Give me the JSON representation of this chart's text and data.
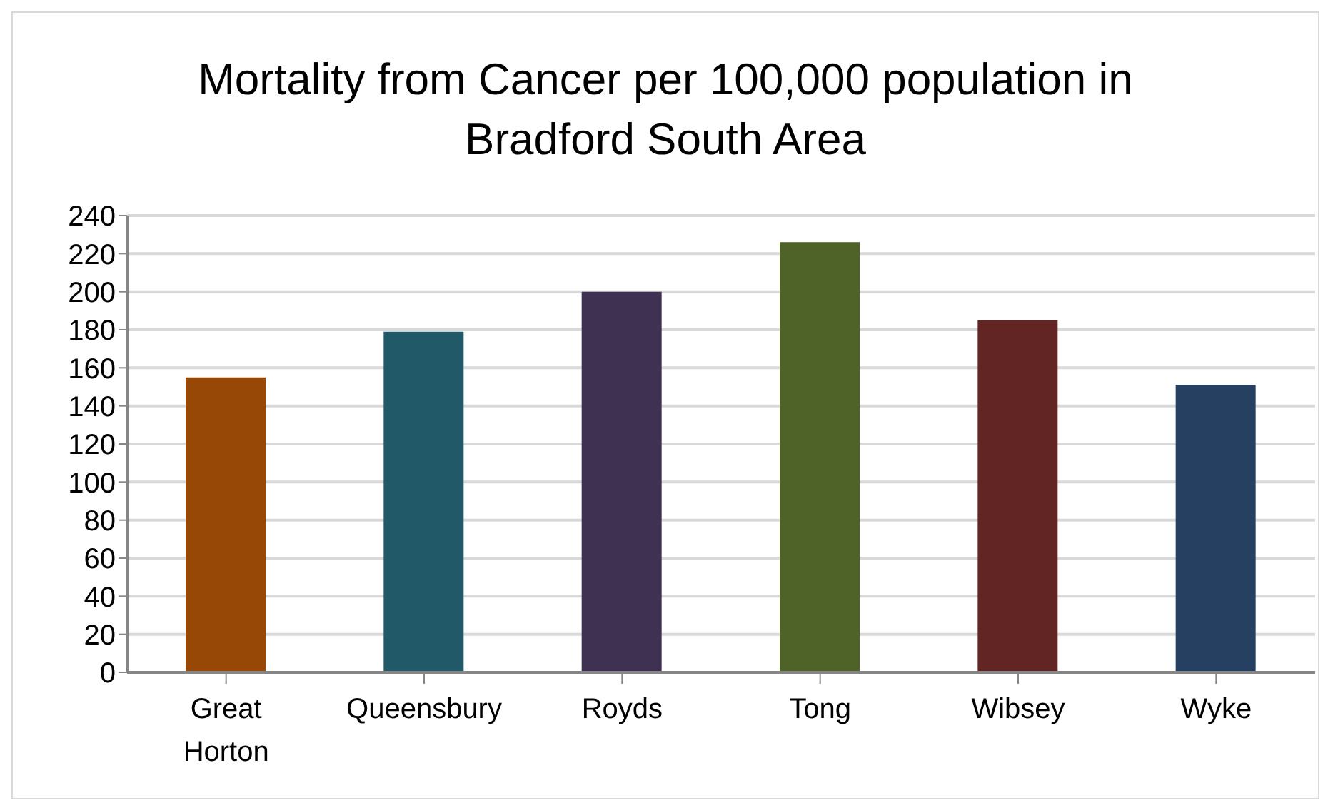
{
  "chart_data": {
    "type": "bar",
    "title": "Mortality from Cancer per 100,000 population in Bradford South Area",
    "categories": [
      "Great Horton",
      "Queensbury",
      "Royds",
      "Tong",
      "Wibsey",
      "Wyke"
    ],
    "values": [
      155,
      179,
      200,
      226,
      185,
      151
    ],
    "colors": [
      "#974706",
      "#215968",
      "#3f3151",
      "#4f6228",
      "#632523",
      "#254061"
    ],
    "ylim": [
      0,
      240
    ],
    "yticks": [
      0,
      20,
      40,
      60,
      80,
      100,
      120,
      140,
      160,
      180,
      200,
      220,
      240
    ],
    "grid": "y"
  }
}
